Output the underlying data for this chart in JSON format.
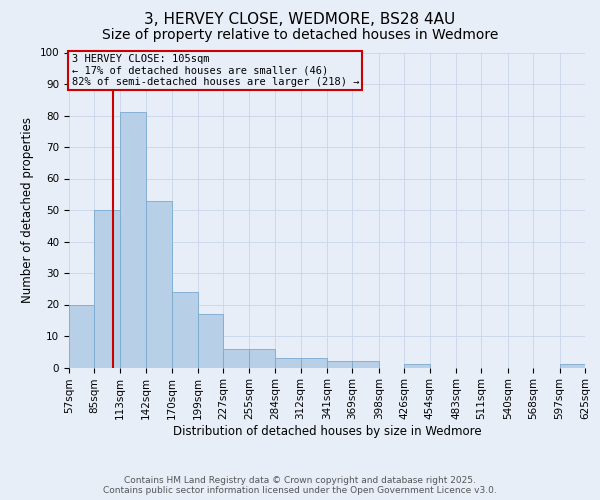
{
  "title": "3, HERVEY CLOSE, WEDMORE, BS28 4AU",
  "subtitle": "Size of property relative to detached houses in Wedmore",
  "xlabel": "Distribution of detached houses by size in Wedmore",
  "ylabel": "Number of detached properties",
  "bins": [
    57,
    85,
    113,
    142,
    170,
    199,
    227,
    255,
    284,
    312,
    341,
    369,
    398,
    426,
    454,
    483,
    511,
    540,
    568,
    597,
    625
  ],
  "counts": [
    20,
    50,
    81,
    53,
    24,
    17,
    6,
    6,
    3,
    3,
    2,
    2,
    0,
    1,
    0,
    0,
    0,
    0,
    0,
    1,
    1
  ],
  "bar_color": "#b8cfe8",
  "bar_edge_color": "#7aaad0",
  "vline_x": 105,
  "vline_color": "#cc0000",
  "annotation_text": "3 HERVEY CLOSE: 105sqm\n← 17% of detached houses are smaller (46)\n82% of semi-detached houses are larger (218) →",
  "annotation_box_color": "#cc0000",
  "ylim": [
    0,
    100
  ],
  "yticks": [
    0,
    10,
    20,
    30,
    40,
    50,
    60,
    70,
    80,
    90,
    100
  ],
  "grid_color": "#c8d4e8",
  "background_color": "#e8eef8",
  "footer_line1": "Contains HM Land Registry data © Crown copyright and database right 2025.",
  "footer_line2": "Contains public sector information licensed under the Open Government Licence v3.0.",
  "title_fontsize": 11,
  "subtitle_fontsize": 10,
  "axis_label_fontsize": 8.5,
  "tick_fontsize": 7.5,
  "annotation_fontsize": 7.5,
  "footer_fontsize": 6.5
}
